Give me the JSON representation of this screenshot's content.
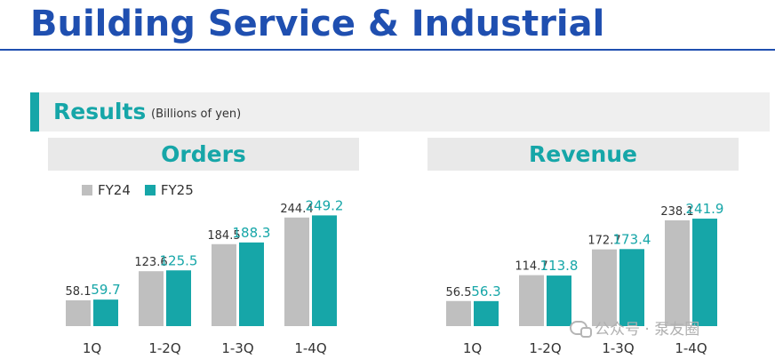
{
  "header": {
    "title": "Building Service & Industrial"
  },
  "results": {
    "title": "Results",
    "unit": "(Billions of yen)"
  },
  "colors": {
    "fy24": "#bfbfbf",
    "fy25": "#16a6a8",
    "accent": "#16a6a8",
    "title": "#1f4fb0"
  },
  "legend": [
    {
      "name": "FY24",
      "color": "#bfbfbf"
    },
    {
      "name": "FY25",
      "color": "#16a6a8"
    }
  ],
  "watermark": {
    "text": "公众号 · 泵友圈"
  },
  "chart_data": [
    {
      "type": "bar",
      "title": "Orders",
      "categories": [
        "1Q",
        "1-2Q",
        "1-3Q",
        "1-4Q"
      ],
      "series": [
        {
          "name": "FY24",
          "values": [
            58.1,
            123.6,
            184.5,
            244.4
          ],
          "labels": [
            "58.1",
            "123.6",
            "184.5",
            "244.4"
          ]
        },
        {
          "name": "FY25",
          "values": [
            59.7,
            125.5,
            188.3,
            249.2
          ],
          "labels": [
            "59.7",
            "125.5",
            "188.3",
            "249.2"
          ]
        }
      ],
      "ylim": [
        0,
        260
      ]
    },
    {
      "type": "bar",
      "title": "Revenue",
      "categories": [
        "1Q",
        "1-2Q",
        "1-3Q",
        "1-4Q"
      ],
      "series": [
        {
          "name": "FY24",
          "values": [
            56.5,
            114.7,
            172.7,
            238.1
          ],
          "labels": [
            "56.5",
            "114.7",
            "172.7",
            "238.1"
          ]
        },
        {
          "name": "FY25",
          "values": [
            56.3,
            113.8,
            173.4,
            241.9
          ],
          "labels": [
            "56.3",
            "113.8",
            "173.4",
            "241.9"
          ]
        }
      ],
      "ylim": [
        0,
        260
      ]
    }
  ]
}
